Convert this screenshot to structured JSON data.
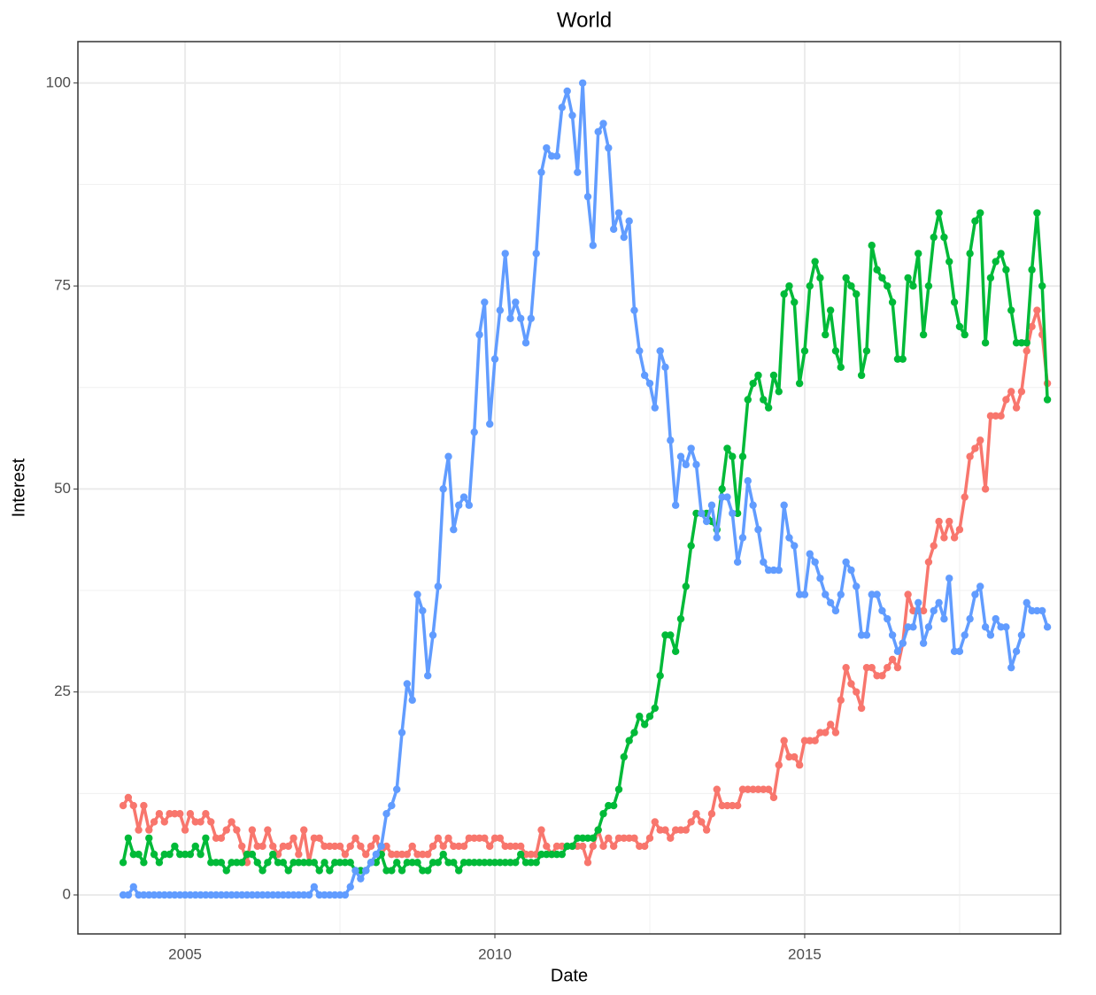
{
  "chart_data": {
    "type": "line",
    "title": "World",
    "xlabel": "Date",
    "ylabel": "Interest",
    "x": [
      2004,
      2004.083,
      2004.167,
      2004.25,
      2004.333,
      2004.417,
      2004.5,
      2004.583,
      2004.667,
      2004.75,
      2004.833,
      2004.917,
      2005,
      2005.083,
      2005.167,
      2005.25,
      2005.333,
      2005.417,
      2005.5,
      2005.583,
      2005.667,
      2005.75,
      2005.833,
      2005.917,
      2006,
      2006.083,
      2006.167,
      2006.25,
      2006.333,
      2006.417,
      2006.5,
      2006.583,
      2006.667,
      2006.75,
      2006.833,
      2006.917,
      2007,
      2007.083,
      2007.167,
      2007.25,
      2007.333,
      2007.417,
      2007.5,
      2007.583,
      2007.667,
      2007.75,
      2007.833,
      2007.917,
      2008,
      2008.083,
      2008.167,
      2008.25,
      2008.333,
      2008.417,
      2008.5,
      2008.583,
      2008.667,
      2008.75,
      2008.833,
      2008.917,
      2009,
      2009.083,
      2009.167,
      2009.25,
      2009.333,
      2009.417,
      2009.5,
      2009.583,
      2009.667,
      2009.75,
      2009.833,
      2009.917,
      2010,
      2010.083,
      2010.167,
      2010.25,
      2010.333,
      2010.417,
      2010.5,
      2010.583,
      2010.667,
      2010.75,
      2010.833,
      2010.917,
      2011,
      2011.083,
      2011.167,
      2011.25,
      2011.333,
      2011.417,
      2011.5,
      2011.583,
      2011.667,
      2011.75,
      2011.833,
      2011.917,
      2012,
      2012.083,
      2012.167,
      2012.25,
      2012.333,
      2012.417,
      2012.5,
      2012.583,
      2012.667,
      2012.75,
      2012.833,
      2012.917,
      2013,
      2013.083,
      2013.167,
      2013.25,
      2013.333,
      2013.417,
      2013.5,
      2013.583,
      2013.667,
      2013.75,
      2013.833,
      2013.917,
      2014,
      2014.083,
      2014.167,
      2014.25,
      2014.333,
      2014.417,
      2014.5,
      2014.583,
      2014.667,
      2014.75,
      2014.833,
      2014.917,
      2015,
      2015.083,
      2015.167,
      2015.25,
      2015.333,
      2015.417,
      2015.5,
      2015.583,
      2015.667,
      2015.75,
      2015.833,
      2015.917,
      2016,
      2016.083,
      2016.167,
      2016.25,
      2016.333,
      2016.417,
      2016.5,
      2016.583,
      2016.667,
      2016.75,
      2016.833,
      2016.917,
      2017,
      2017.083,
      2017.167,
      2017.25,
      2017.333,
      2017.417,
      2017.5,
      2017.583,
      2017.667,
      2017.75,
      2017.833,
      2017.917,
      2018,
      2018.083,
      2018.167,
      2018.25,
      2018.333,
      2018.417,
      2018.5,
      2018.583,
      2018.667,
      2018.75,
      2018.833,
      2018.917
    ],
    "series": [
      {
        "color": "#F8766D",
        "values": [
          11,
          12,
          11,
          8,
          11,
          8,
          9,
          10,
          9,
          10,
          10,
          10,
          8,
          10,
          9,
          9,
          10,
          9,
          7,
          7,
          8,
          9,
          8,
          6,
          4,
          8,
          6,
          6,
          8,
          6,
          5,
          6,
          6,
          7,
          5,
          8,
          4,
          7,
          7,
          6,
          6,
          6,
          6,
          5,
          6,
          7,
          6,
          5,
          6,
          7,
          5,
          6,
          5,
          5,
          5,
          5,
          6,
          5,
          5,
          5,
          6,
          7,
          6,
          7,
          6,
          6,
          6,
          7,
          7,
          7,
          7,
          6,
          7,
          7,
          6,
          6,
          6,
          6,
          5,
          5,
          5,
          8,
          6,
          5,
          6,
          6,
          6,
          6,
          6,
          6,
          4,
          6,
          8,
          6,
          7,
          6,
          7,
          7,
          7,
          7,
          6,
          6,
          7,
          9,
          8,
          8,
          7,
          8,
          8,
          8,
          9,
          10,
          9,
          8,
          10,
          13,
          11,
          11,
          11,
          11,
          13,
          13,
          13,
          13,
          13,
          13,
          12,
          16,
          19,
          17,
          17,
          16,
          19,
          19,
          19,
          20,
          20,
          21,
          20,
          24,
          28,
          26,
          25,
          23,
          28,
          28,
          27,
          27,
          28,
          29,
          28,
          31,
          37,
          35,
          35,
          35,
          41,
          43,
          46,
          44,
          46,
          44,
          45,
          49,
          54,
          55,
          56,
          50,
          59,
          59,
          59,
          61,
          62,
          60,
          62,
          67,
          70,
          72,
          69,
          63
        ]
      },
      {
        "color": "#00BA38",
        "values": [
          4,
          7,
          5,
          5,
          4,
          7,
          5,
          4,
          5,
          5,
          6,
          5,
          5,
          5,
          6,
          5,
          7,
          4,
          4,
          4,
          3,
          4,
          4,
          4,
          5,
          5,
          4,
          3,
          4,
          5,
          4,
          4,
          3,
          4,
          4,
          4,
          4,
          4,
          3,
          4,
          3,
          4,
          4,
          4,
          4,
          3,
          3,
          3,
          4,
          4,
          5,
          3,
          3,
          4,
          3,
          4,
          4,
          4,
          3,
          3,
          4,
          4,
          5,
          4,
          4,
          3,
          4,
          4,
          4,
          4,
          4,
          4,
          4,
          4,
          4,
          4,
          4,
          5,
          4,
          4,
          4,
          5,
          5,
          5,
          5,
          5,
          6,
          6,
          7,
          7,
          7,
          7,
          8,
          10,
          11,
          11,
          13,
          17,
          19,
          20,
          22,
          21,
          22,
          23,
          27,
          32,
          32,
          30,
          34,
          38,
          43,
          47,
          47,
          47,
          46,
          45,
          50,
          55,
          54,
          47,
          54,
          61,
          63,
          64,
          61,
          60,
          64,
          62,
          74,
          75,
          73,
          63,
          67,
          75,
          78,
          76,
          69,
          72,
          67,
          65,
          76,
          75,
          74,
          64,
          67,
          80,
          77,
          76,
          75,
          73,
          66,
          66,
          76,
          75,
          79,
          69,
          75,
          81,
          84,
          81,
          78,
          73,
          70,
          69,
          79,
          83,
          84,
          68,
          76,
          78,
          79,
          77,
          72,
          68,
          68,
          68,
          77,
          84,
          75,
          61
        ]
      },
      {
        "color": "#619CFF",
        "values": [
          0,
          0,
          1,
          0,
          0,
          0,
          0,
          0,
          0,
          0,
          0,
          0,
          0,
          0,
          0,
          0,
          0,
          0,
          0,
          0,
          0,
          0,
          0,
          0,
          0,
          0,
          0,
          0,
          0,
          0,
          0,
          0,
          0,
          0,
          0,
          0,
          0,
          1,
          0,
          0,
          0,
          0,
          0,
          0,
          1,
          3,
          2,
          3,
          4,
          5,
          6,
          10,
          11,
          13,
          20,
          26,
          24,
          37,
          35,
          27,
          32,
          38,
          50,
          54,
          45,
          48,
          49,
          48,
          57,
          69,
          73,
          58,
          66,
          72,
          79,
          71,
          73,
          71,
          68,
          71,
          79,
          89,
          92,
          91,
          91,
          97,
          99,
          96,
          89,
          100,
          86,
          80,
          94,
          95,
          92,
          82,
          84,
          81,
          83,
          72,
          67,
          64,
          63,
          60,
          67,
          65,
          56,
          48,
          54,
          53,
          55,
          53,
          47,
          46,
          48,
          44,
          49,
          49,
          47,
          41,
          44,
          51,
          48,
          45,
          41,
          40,
          40,
          40,
          48,
          44,
          43,
          37,
          37,
          42,
          41,
          39,
          37,
          36,
          35,
          37,
          41,
          40,
          38,
          32,
          32,
          37,
          37,
          35,
          34,
          32,
          30,
          31,
          33,
          33,
          36,
          31,
          33,
          35,
          36,
          34,
          39,
          30,
          30,
          32,
          34,
          37,
          38,
          33,
          32,
          34,
          33,
          33,
          28,
          30,
          32,
          36,
          35,
          35,
          35,
          33
        ]
      }
    ],
    "xlim": [
      2003.27,
      2019.13
    ],
    "xticks": [
      2005,
      2010,
      2015
    ],
    "ylim": [
      -4.8,
      105.1
    ],
    "yticks": [
      0,
      25,
      50,
      75,
      100
    ],
    "grid": true
  }
}
